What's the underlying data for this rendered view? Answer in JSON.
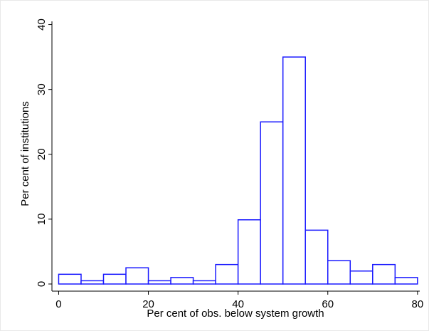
{
  "chart_data": {
    "type": "histogram",
    "x_label": "Per cent of obs. below system growth",
    "y_label": "Per cent of institutions",
    "bins": [
      0,
      5,
      10,
      15,
      20,
      25,
      30,
      35,
      40,
      45,
      50,
      55,
      60,
      65,
      70,
      75,
      80
    ],
    "values": [
      1.5,
      0.5,
      1.5,
      2.5,
      0.5,
      1.0,
      0.5,
      3.0,
      9.9,
      25,
      35,
      8.3,
      3.6,
      2.0,
      3.0,
      1.0
    ],
    "color": "#1a1aff",
    "xlim": [
      -1.5,
      80.5
    ],
    "ylim": [
      -1.1,
      40.5
    ],
    "xticks": [
      0,
      20,
      40,
      60,
      80
    ],
    "yticks": [
      0,
      10,
      20,
      30,
      40
    ]
  }
}
